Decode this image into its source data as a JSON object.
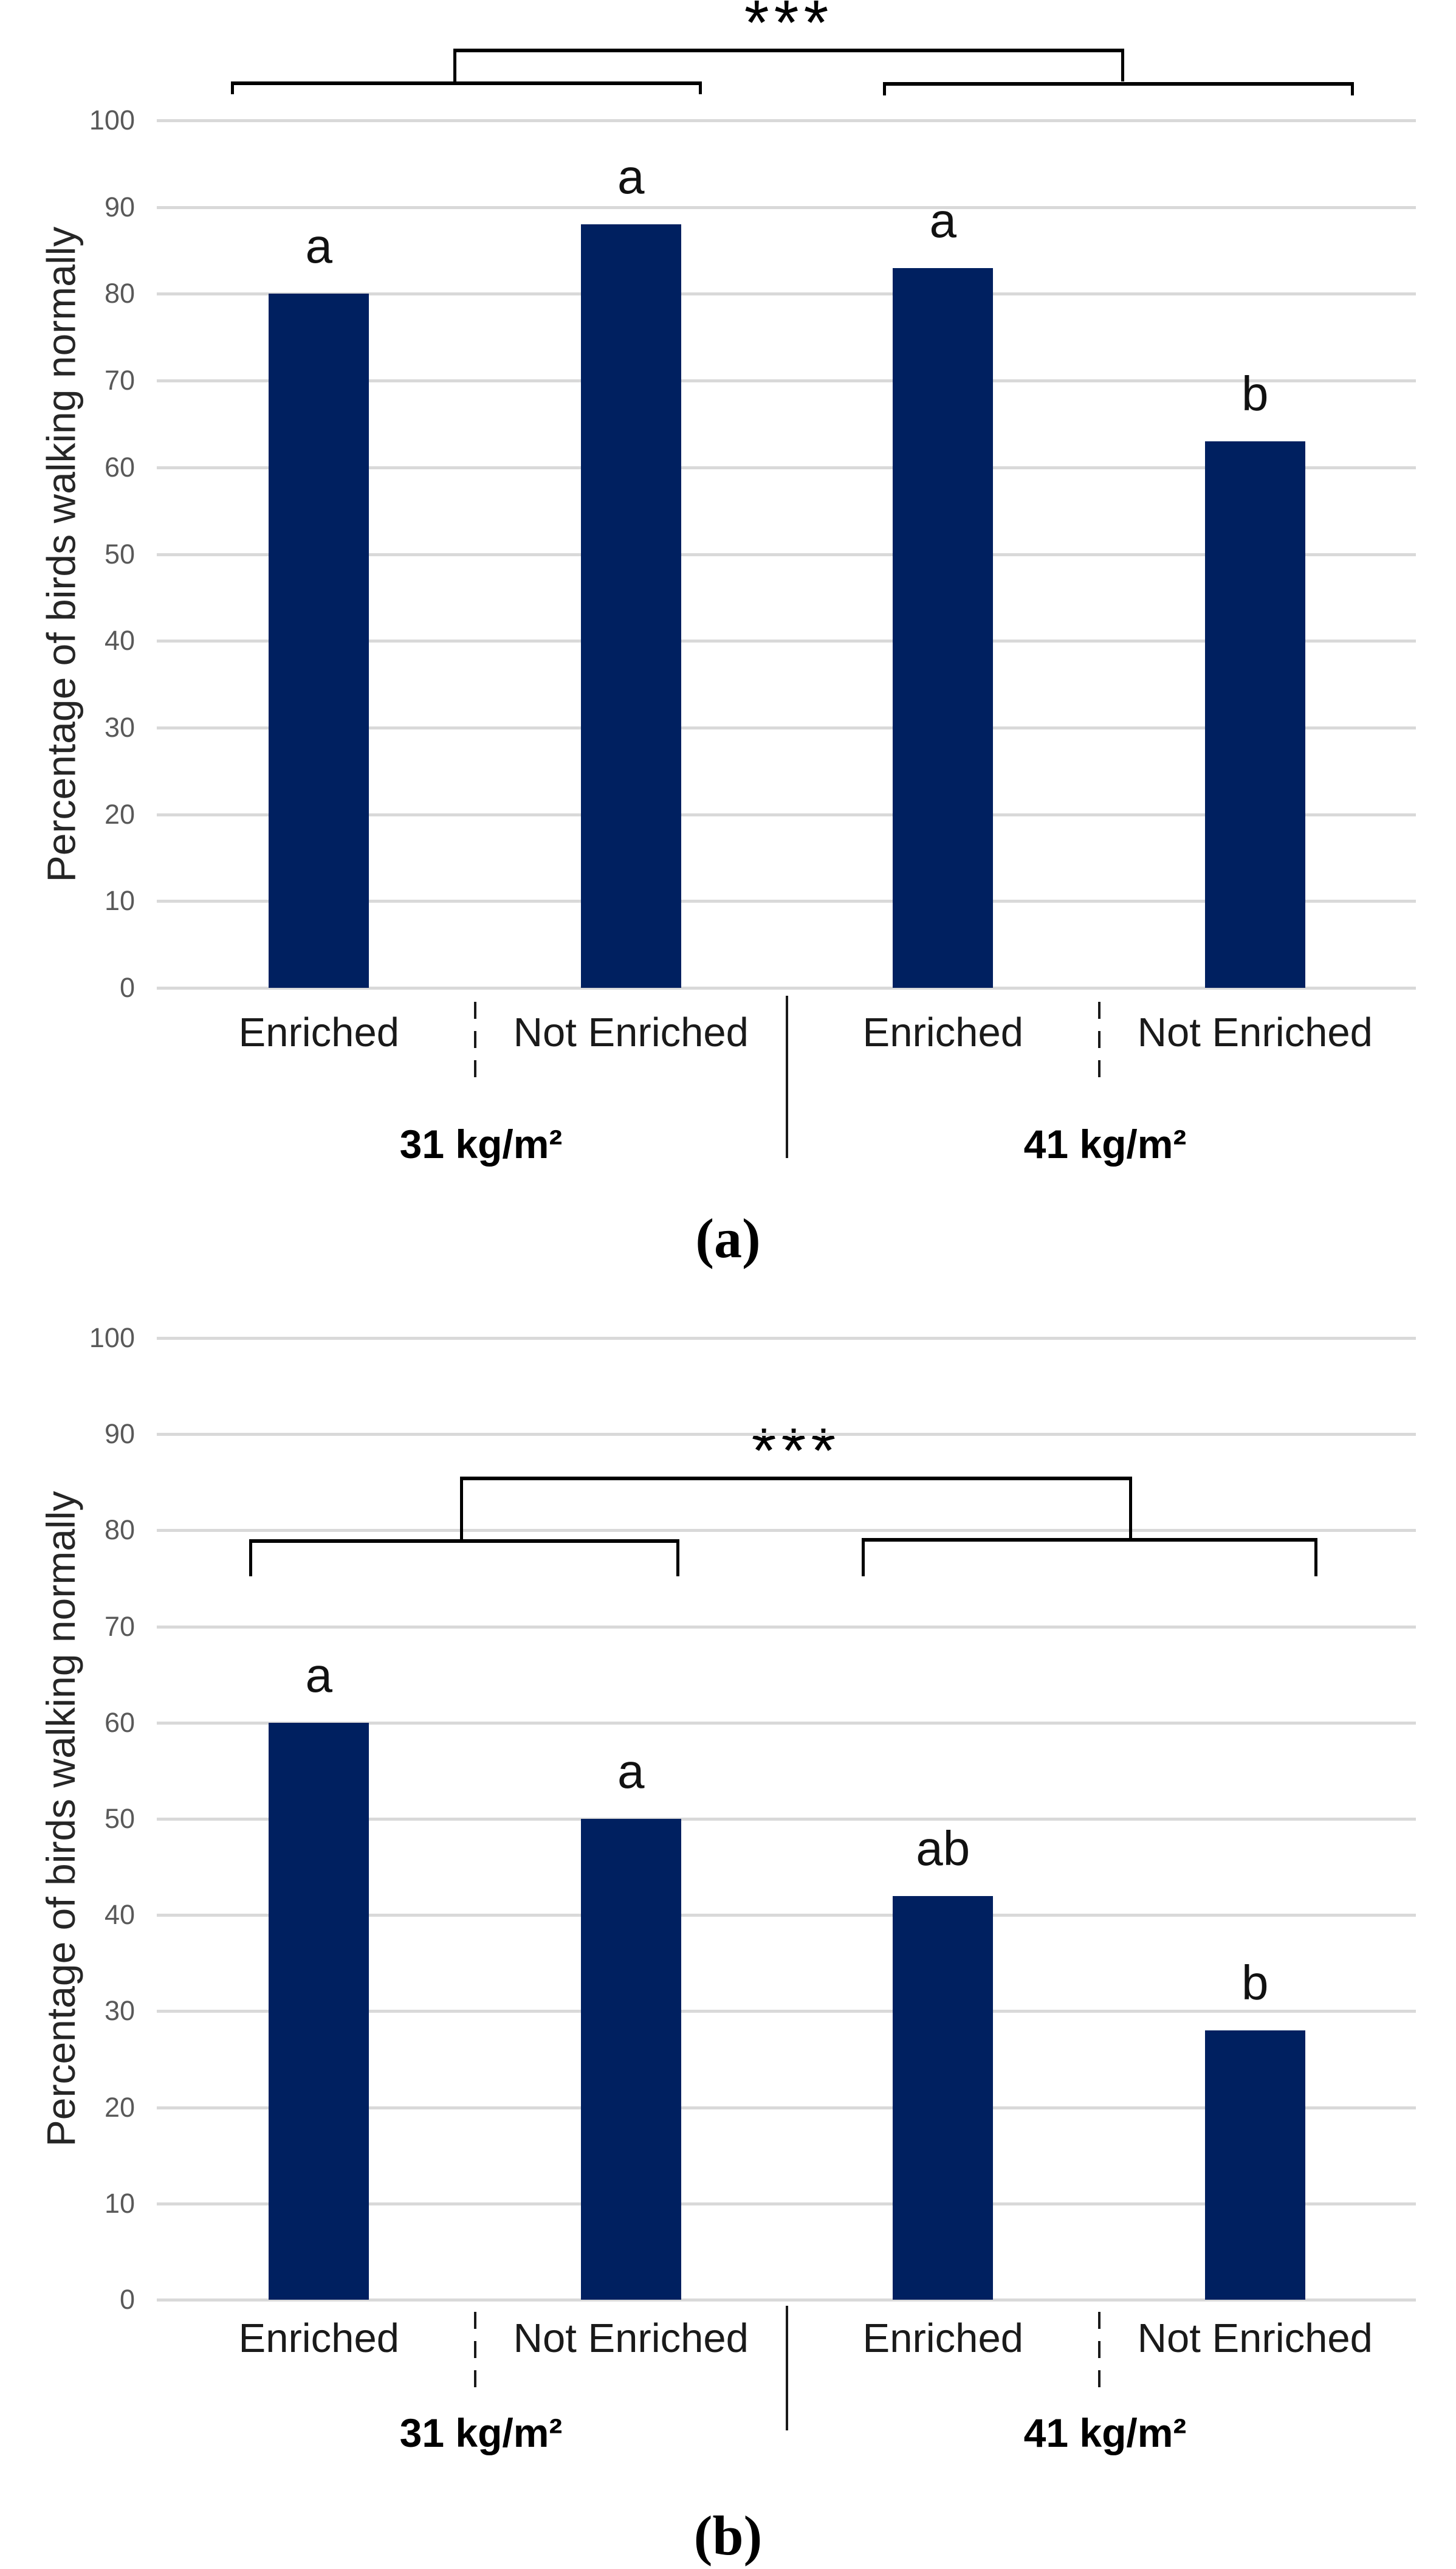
{
  "figure": {
    "background": "#ffffff",
    "bar_color": "#002060",
    "grid_color": "#d9d9d9",
    "tick_color": "#595959",
    "bracket_color": "#000000"
  },
  "chart_data": [
    {
      "type": "bar",
      "panel": "a",
      "caption": "(a)",
      "ylabel": "Percentage of birds walking normally",
      "xlabel": "",
      "ylim": [
        0,
        100
      ],
      "yticks": [
        0,
        10,
        20,
        30,
        40,
        50,
        60,
        70,
        80,
        90,
        100
      ],
      "grid": true,
      "legend": "none",
      "categories": [
        "Enriched",
        "Not Enriched",
        "Enriched",
        "Not Enriched"
      ],
      "values": [
        80,
        88,
        83,
        63
      ],
      "letters": [
        "a",
        "a",
        "a",
        "b"
      ],
      "groups": [
        {
          "label": "31 kg/m²",
          "slot": 1
        },
        {
          "label": "41 kg/m²",
          "slot": 3
        }
      ],
      "significance": {
        "label": "***",
        "comparison": {
          "y": 108.3,
          "x1": 0.931,
          "x2": 3.081,
          "drop": 104.5
        },
        "group_brackets": [
          {
            "y": 104.5,
            "x1": 0.218,
            "x2": 1.727,
            "drop": 103.0
          },
          {
            "y": 104.4,
            "x1": 2.308,
            "x2": 3.817,
            "drop": 102.9
          }
        ]
      }
    },
    {
      "type": "bar",
      "panel": "b",
      "caption": "(b)",
      "ylabel": "Percentage of birds walking normally",
      "xlabel": "",
      "ylim": [
        0,
        100
      ],
      "yticks": [
        0,
        10,
        20,
        30,
        40,
        50,
        60,
        70,
        80,
        90,
        100
      ],
      "grid": true,
      "legend": "none",
      "categories": [
        "Enriched",
        "Not Enriched",
        "Enriched",
        "Not Enriched"
      ],
      "values": [
        60,
        50,
        42,
        28
      ],
      "letters": [
        "a",
        "a",
        "ab",
        "b"
      ],
      "groups": [
        {
          "label": "31 kg/m²",
          "slot": 1
        },
        {
          "label": "41 kg/m²",
          "slot": 3
        }
      ],
      "significance": {
        "label": "***",
        "comparison": {
          "y": 85.6,
          "x1": 0.952,
          "x2": 3.106,
          "drop": 79.1
        },
        "group_brackets": [
          {
            "y": 79.1,
            "x1": 0.277,
            "x2": 1.655,
            "drop": 75.2
          },
          {
            "y": 79.2,
            "x1": 2.24,
            "x2": 3.7,
            "drop": 75.2
          }
        ]
      }
    }
  ]
}
